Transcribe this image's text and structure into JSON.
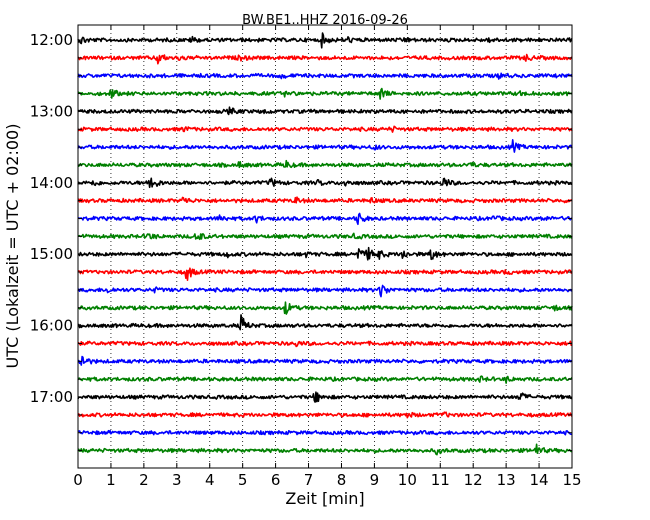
{
  "chart_data": {
    "type": "line",
    "title": "BW.BE1..HHZ 2016-09-26",
    "xlabel": "Zeit  [min]",
    "ylabel": "UTC (Lokalzeit = UTC + 02:00)",
    "xlim": [
      0,
      15
    ],
    "x_ticks": [
      0,
      1,
      2,
      3,
      4,
      5,
      6,
      7,
      8,
      9,
      10,
      11,
      12,
      13,
      14,
      15
    ],
    "x_tick_labels": [
      "0",
      "1",
      "2",
      "3",
      "4",
      "5",
      "6",
      "7",
      "8",
      "9",
      "10",
      "11",
      "12",
      "13",
      "14",
      "15"
    ],
    "y_tick_labels": [
      "12:00",
      "13:00",
      "14:00",
      "15:00",
      "16:00",
      "17:00"
    ],
    "vertical_grid": "dotted",
    "trace_colors": [
      "#000000",
      "#ff0000",
      "#0000ff",
      "#008000"
    ],
    "traces": [
      {
        "start": "12:00",
        "events": [
          [
            0.1,
            0.5
          ],
          [
            3.45,
            0.45
          ],
          [
            7.4,
            0.9
          ],
          [
            8.2,
            0.3
          ],
          [
            9.9,
            0.35
          ],
          [
            12.5,
            0.35
          ]
        ]
      },
      {
        "start": "12:15",
        "events": [
          [
            2.4,
            1.0
          ],
          [
            3.1,
            0.35
          ],
          [
            4.9,
            0.35
          ],
          [
            13.6,
            0.45
          ]
        ]
      },
      {
        "start": "12:30",
        "events": [
          [
            6.2,
            0.3
          ],
          [
            12.8,
            0.3
          ]
        ]
      },
      {
        "start": "12:45",
        "events": [
          [
            1.0,
            0.7
          ],
          [
            6.3,
            0.3
          ],
          [
            9.15,
            1.0
          ],
          [
            13.4,
            0.3
          ]
        ]
      },
      {
        "start": "13:00",
        "events": [
          [
            4.6,
            0.45
          ],
          [
            5.6,
            0.3
          ]
        ]
      },
      {
        "start": "13:15",
        "events": [
          [
            3.2,
            0.3
          ],
          [
            9.5,
            0.35
          ]
        ]
      },
      {
        "start": "13:30",
        "events": [
          [
            13.2,
            0.8
          ],
          [
            9.0,
            0.3
          ]
        ]
      },
      {
        "start": "13:45",
        "events": [
          [
            4.9,
            0.35
          ],
          [
            6.3,
            0.55
          ],
          [
            11.9,
            0.3
          ]
        ]
      },
      {
        "start": "14:00",
        "events": [
          [
            0.45,
            0.4
          ],
          [
            2.2,
            1.6
          ],
          [
            5.85,
            0.6
          ],
          [
            8.1,
            0.4
          ],
          [
            11.1,
            0.8
          ],
          [
            7.3,
            0.3
          ]
        ]
      },
      {
        "start": "14:15",
        "events": [
          [
            3.2,
            0.5
          ],
          [
            6.6,
            0.45
          ],
          [
            8.9,
            0.3
          ]
        ]
      },
      {
        "start": "14:30",
        "events": [
          [
            4.3,
            0.5
          ],
          [
            5.4,
            0.5
          ],
          [
            8.5,
            0.9
          ],
          [
            12.6,
            0.3
          ],
          [
            14.1,
            0.3
          ]
        ]
      },
      {
        "start": "14:45",
        "events": [
          [
            2.1,
            0.6
          ],
          [
            3.6,
            0.9
          ],
          [
            8.4,
            0.3
          ]
        ]
      },
      {
        "start": "15:00",
        "events": [
          [
            8.5,
            1.0
          ],
          [
            8.8,
            0.8
          ],
          [
            9.1,
            0.7
          ],
          [
            9.85,
            0.65
          ],
          [
            10.7,
            1.0
          ],
          [
            4.5,
            0.35
          ],
          [
            6.9,
            0.3
          ]
        ]
      },
      {
        "start": "15:15",
        "events": [
          [
            3.3,
            1.3
          ],
          [
            13.0,
            0.3
          ]
        ]
      },
      {
        "start": "15:30",
        "events": [
          [
            9.2,
            1.2
          ],
          [
            0.9,
            0.35
          ],
          [
            2.3,
            0.3
          ]
        ]
      },
      {
        "start": "15:45",
        "events": [
          [
            6.3,
            1.0
          ],
          [
            14.5,
            0.35
          ]
        ]
      },
      {
        "start": "16:00",
        "events": [
          [
            4.95,
            1.4
          ],
          [
            15.0,
            0.3
          ]
        ]
      },
      {
        "start": "16:15",
        "events": [
          [
            6.6,
            0.35
          ],
          [
            15.0,
            0.7
          ]
        ]
      },
      {
        "start": "16:30",
        "events": [
          [
            0.1,
            1.1
          ]
        ]
      },
      {
        "start": "16:45",
        "events": [
          [
            12.2,
            0.3
          ],
          [
            13.0,
            0.35
          ]
        ]
      },
      {
        "start": "17:00",
        "events": [
          [
            7.2,
            0.9
          ],
          [
            13.4,
            0.8
          ]
        ]
      },
      {
        "start": "17:15",
        "events": [
          [
            10.0,
            0.35
          ],
          [
            11.1,
            0.3
          ]
        ]
      },
      {
        "start": "17:30",
        "events": []
      },
      {
        "start": "17:45",
        "events": [
          [
            10.9,
            0.4
          ],
          [
            13.9,
            0.9
          ]
        ]
      }
    ]
  }
}
